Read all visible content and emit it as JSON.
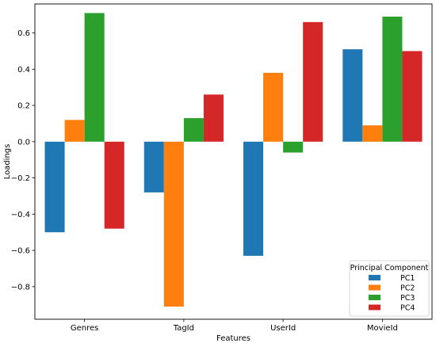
{
  "chart_data": {
    "type": "bar",
    "title": "",
    "xlabel": "Features",
    "ylabel": "Loadings",
    "categories": [
      "Genres",
      "TagId",
      "UserId",
      "MovieId"
    ],
    "ylim": [
      -0.98,
      0.76
    ],
    "yticks": [
      0.6,
      0.4,
      0.2,
      0.0,
      -0.2,
      -0.4,
      -0.6,
      -0.8
    ],
    "ytick_labels": [
      "0.6",
      "0.4",
      "0.2",
      "0.0",
      "−0.2",
      "−0.4",
      "−0.6",
      "−0.8"
    ],
    "grid": false,
    "legend": {
      "title": "Principal Component",
      "position": "bottom-right"
    },
    "series": [
      {
        "name": "PC1",
        "color": "#1f77b4",
        "values": [
          -0.5,
          -0.28,
          -0.63,
          0.51
        ]
      },
      {
        "name": "PC2",
        "color": "#ff7f0e",
        "values": [
          0.12,
          -0.91,
          0.38,
          0.09
        ]
      },
      {
        "name": "PC3",
        "color": "#2ca02c",
        "values": [
          0.71,
          0.13,
          -0.06,
          0.69
        ]
      },
      {
        "name": "PC4",
        "color": "#d62728",
        "values": [
          -0.48,
          0.26,
          0.66,
          0.5
        ]
      }
    ]
  }
}
